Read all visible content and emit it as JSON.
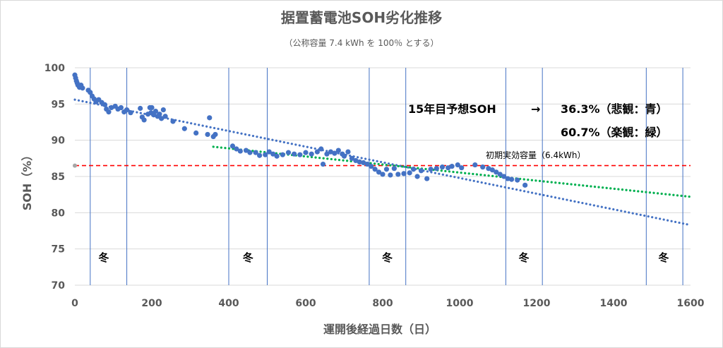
{
  "chart_data": {
    "type": "scatter",
    "title": "据置蓄電池SOH劣化推移",
    "subtitle": "（公称容量 7.4 kWh を 100％ とする）",
    "xlabel": "運開後経過日数（日）",
    "ylabel": "SOH（%）",
    "xlim": [
      0,
      1600
    ],
    "ylim": [
      70,
      100
    ],
    "x_ticks": [
      "0",
      "200",
      "400",
      "600",
      "800",
      "1000",
      "1200",
      "1400",
      "1600"
    ],
    "y_ticks": [
      "100",
      "95",
      "90",
      "85",
      "80",
      "75",
      "70"
    ],
    "grid": "horizontal",
    "colors": {
      "points": "#4472C4",
      "trend_pessimistic": "#4472C4",
      "trend_optimistic": "#00B050",
      "effective_capacity_line": "#FF0000",
      "season_lines": "#4472C4"
    },
    "series": [
      {
        "points": [
          [
            0,
            99.0
          ],
          [
            2,
            98.6
          ],
          [
            4,
            98.2
          ],
          [
            6,
            97.9
          ],
          [
            8,
            97.6
          ],
          [
            12,
            97.3
          ],
          [
            16,
            97.6
          ],
          [
            20,
            97.2
          ],
          [
            35,
            96.9
          ],
          [
            40,
            96.6
          ],
          [
            45,
            96.1
          ],
          [
            50,
            95.7
          ],
          [
            55,
            95.3
          ],
          [
            62,
            95.6
          ],
          [
            70,
            95.2
          ],
          [
            78,
            94.9
          ],
          [
            82,
            94.3
          ],
          [
            88,
            93.9
          ],
          [
            95,
            94.5
          ],
          [
            105,
            94.7
          ],
          [
            112,
            94.3
          ],
          [
            120,
            94.5
          ],
          [
            128,
            93.9
          ],
          [
            135,
            94.2
          ],
          [
            145,
            93.8
          ],
          [
            170,
            94.4
          ],
          [
            175,
            93.2
          ],
          [
            180,
            92.8
          ],
          [
            190,
            93.6
          ],
          [
            195,
            94.5
          ],
          [
            198,
            93.8
          ],
          [
            200,
            94.5
          ],
          [
            205,
            93.5
          ],
          [
            210,
            94.0
          ],
          [
            215,
            93.3
          ],
          [
            220,
            93.6
          ],
          [
            225,
            93.0
          ],
          [
            230,
            94.2
          ],
          [
            235,
            93.3
          ],
          [
            255,
            92.6
          ],
          [
            285,
            91.6
          ],
          [
            315,
            91.0
          ],
          [
            345,
            90.8
          ],
          [
            350,
            93.1
          ],
          [
            360,
            90.5
          ],
          [
            365,
            90.8
          ],
          [
            410,
            89.2
          ],
          [
            420,
            88.8
          ],
          [
            430,
            88.5
          ],
          [
            445,
            88.6
          ],
          [
            455,
            88.3
          ],
          [
            470,
            88.3
          ],
          [
            480,
            87.9
          ],
          [
            495,
            88.0
          ],
          [
            505,
            88.4
          ],
          [
            515,
            88.1
          ],
          [
            525,
            87.8
          ],
          [
            540,
            88.0
          ],
          [
            555,
            88.3
          ],
          [
            570,
            88.1
          ],
          [
            585,
            88.0
          ],
          [
            600,
            88.3
          ],
          [
            615,
            88.1
          ],
          [
            630,
            88.4
          ],
          [
            640,
            88.8
          ],
          [
            645,
            86.7
          ],
          [
            655,
            88.1
          ],
          [
            665,
            88.4
          ],
          [
            675,
            88.2
          ],
          [
            685,
            88.6
          ],
          [
            695,
            88.1
          ],
          [
            700,
            87.8
          ],
          [
            710,
            88.4
          ],
          [
            720,
            87.5
          ],
          [
            730,
            87.2
          ],
          [
            740,
            87.0
          ],
          [
            750,
            86.9
          ],
          [
            760,
            86.7
          ],
          [
            770,
            86.4
          ],
          [
            780,
            86.0
          ],
          [
            790,
            85.6
          ],
          [
            800,
            85.3
          ],
          [
            810,
            86.0
          ],
          [
            820,
            85.2
          ],
          [
            830,
            86.1
          ],
          [
            840,
            85.3
          ],
          [
            855,
            85.4
          ],
          [
            870,
            85.5
          ],
          [
            880,
            86.0
          ],
          [
            890,
            85.0
          ],
          [
            900,
            85.8
          ],
          [
            915,
            84.7
          ],
          [
            925,
            86.0
          ],
          [
            940,
            86.1
          ],
          [
            955,
            86.3
          ],
          [
            970,
            86.2
          ],
          [
            980,
            86.4
          ],
          [
            995,
            86.6
          ],
          [
            1005,
            86.2
          ],
          [
            1040,
            86.6
          ],
          [
            1060,
            86.3
          ],
          [
            1075,
            86.1
          ],
          [
            1085,
            85.9
          ],
          [
            1095,
            85.6
          ],
          [
            1105,
            85.3
          ],
          [
            1115,
            85.0
          ],
          [
            1125,
            84.7
          ],
          [
            1135,
            84.6
          ],
          [
            1150,
            84.5
          ],
          [
            1170,
            83.8
          ]
        ]
      }
    ],
    "trendlines": [
      {
        "x": [
          0,
          1600
        ],
        "y": [
          95.6,
          78.3
        ]
      },
      {
        "x": [
          360,
          1600
        ],
        "y": [
          89.1,
          82.2
        ]
      }
    ],
    "reference_line": {
      "y": 86.5,
      "label": "初期実効容量（6.4kWh）"
    },
    "season_boundaries": [
      40,
      135,
      400,
      500,
      765,
      860,
      1120,
      1215,
      1485,
      1580
    ],
    "season_labels": [
      {
        "x": 75,
        "text": "冬"
      },
      {
        "x": 450,
        "text": "冬"
      },
      {
        "x": 812,
        "text": "冬"
      },
      {
        "x": 1167,
        "text": "冬"
      },
      {
        "x": 1530,
        "text": "冬"
      }
    ],
    "annotations": [
      {
        "label": "15年目予想SOH",
        "arrow": "→",
        "value": "36.3%（悲観：青）"
      },
      {
        "value": "60.7%（楽観：緑）"
      }
    ]
  }
}
